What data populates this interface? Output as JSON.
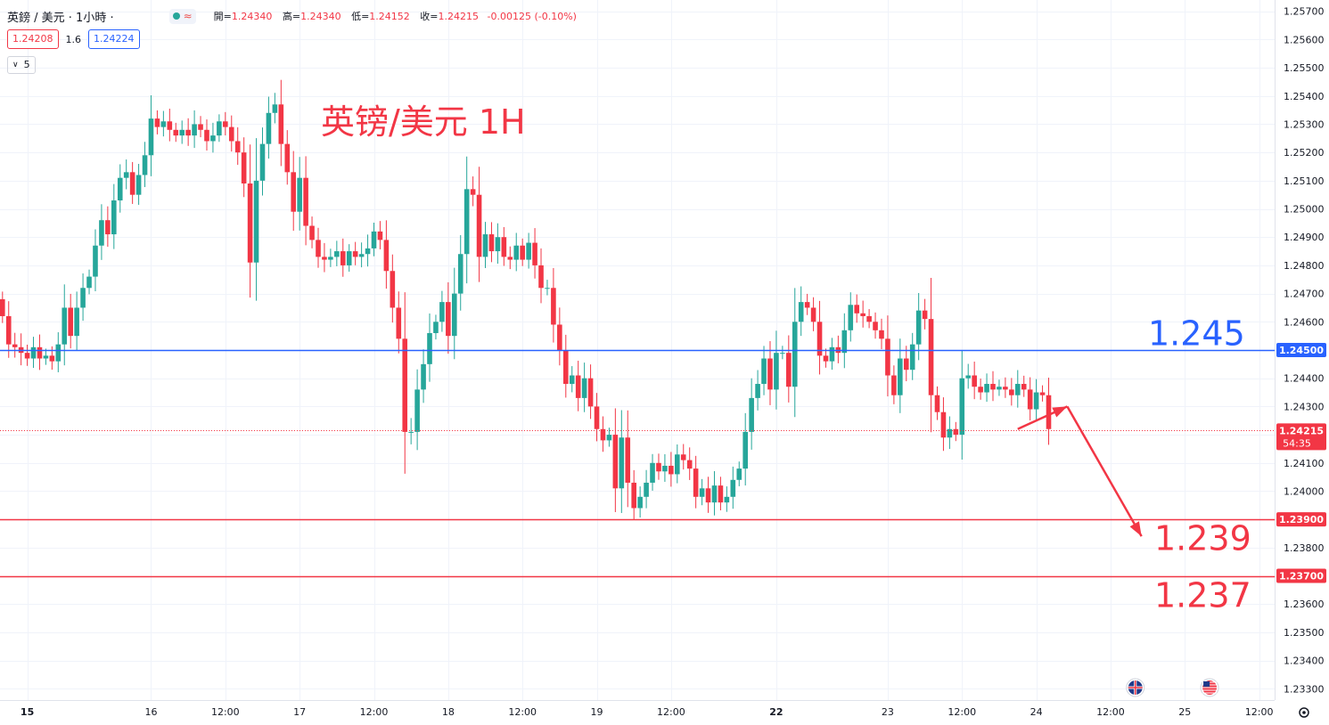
{
  "header": {
    "title": "英鎊 / 美元 · 1小時 ·",
    "ohlc": [
      {
        "label": "開=",
        "value": "1.24340"
      },
      {
        "label": "高=",
        "value": "1.24340"
      },
      {
        "label": "低=",
        "value": "1.24152"
      },
      {
        "label": "收=",
        "value": "1.24215"
      }
    ],
    "change": "-0.00125 (-0.10%)",
    "wave_symbol": "≈"
  },
  "prices": {
    "sell": "1.24208",
    "spread": "1.6",
    "buy": "1.24224"
  },
  "indicators_toggle": {
    "count": "5",
    "chevron": "∨"
  },
  "annotation_title": "英镑/美元 1H",
  "levels": [
    {
      "label": "1.245",
      "price": 1.245,
      "axis_tag": "1.24500",
      "color": "#2962ff"
    },
    {
      "label": "1.239",
      "price": 1.239,
      "axis_tag": "1.23900",
      "color": "#f23645"
    },
    {
      "label": "1.237",
      "price": 1.237,
      "axis_tag": "1.23700",
      "color": "#f23645"
    }
  ],
  "current_price": {
    "price": 1.24215,
    "tag": "1.24215",
    "countdown": "54:35"
  },
  "chart_data": {
    "type": "candlestick",
    "ylim": [
      1.2326,
      1.2574
    ],
    "y_ticks": [
      "1.25700",
      "1.25600",
      "1.25500",
      "1.25400",
      "1.25300",
      "1.25200",
      "1.25100",
      "1.25000",
      "1.24900",
      "1.24800",
      "1.24700",
      "1.24600",
      "1.24500",
      "1.24400",
      "1.24300",
      "1.24200",
      "1.24100",
      "1.24000",
      "1.23900",
      "1.23800",
      "1.23700",
      "1.23600",
      "1.23500",
      "1.23400",
      "1.23300"
    ],
    "x_ticks": [
      {
        "label": "15",
        "bold": true,
        "bar": 4
      },
      {
        "label": "16",
        "bold": false,
        "bar": 24
      },
      {
        "label": "12:00",
        "bold": false,
        "bar": 36
      },
      {
        "label": "17",
        "bold": false,
        "bar": 48
      },
      {
        "label": "12:00",
        "bold": false,
        "bar": 60
      },
      {
        "label": "18",
        "bold": false,
        "bar": 72
      },
      {
        "label": "12:00",
        "bold": false,
        "bar": 84
      },
      {
        "label": "19",
        "bold": false,
        "bar": 96
      },
      {
        "label": "12:00",
        "bold": false,
        "bar": 108
      },
      {
        "label": "22",
        "bold": true,
        "bar": 125
      },
      {
        "label": "23",
        "bold": false,
        "bar": 143
      },
      {
        "label": "12:00",
        "bold": false,
        "bar": 155
      },
      {
        "label": "24",
        "bold": false,
        "bar": 167
      },
      {
        "label": "12:00",
        "bold": false,
        "bar": 179
      },
      {
        "label": "25",
        "bold": false,
        "bar": 191
      },
      {
        "label": "12:00",
        "bold": false,
        "bar": 203
      }
    ],
    "closes": [
      1.2462,
      1.2452,
      1.2451,
      1.2449,
      1.2447,
      1.2451,
      1.2447,
      1.2448,
      1.2446,
      1.2452,
      1.2465,
      1.2455,
      1.2465,
      1.2472,
      1.2476,
      1.2487,
      1.2496,
      1.2491,
      1.2503,
      1.2511,
      1.2513,
      1.2505,
      1.2512,
      1.2519,
      1.2532,
      1.2529,
      1.2531,
      1.2528,
      1.2526,
      1.2528,
      1.2526,
      1.253,
      1.2528,
      1.2524,
      1.2526,
      1.2531,
      1.2529,
      1.2524,
      1.252,
      1.2509,
      1.2481,
      1.251,
      1.2523,
      1.2534,
      1.2537,
      1.2523,
      1.2513,
      1.2499,
      1.2511,
      1.2494,
      1.2489,
      1.2483,
      1.2482,
      1.2483,
      1.2485,
      1.248,
      1.2485,
      1.2483,
      1.2484,
      1.2486,
      1.2492,
      1.2489,
      1.2478,
      1.2465,
      1.2454,
      1.2421,
      1.2421,
      1.2436,
      1.2445,
      1.2456,
      1.246,
      1.2467,
      1.2455,
      1.247,
      1.2484,
      1.2507,
      1.2505,
      1.2483,
      1.2491,
      1.2485,
      1.249,
      1.2483,
      1.2482,
      1.2487,
      1.2482,
      1.2488,
      1.248,
      1.2472,
      1.2472,
      1.2459,
      1.245,
      1.2438,
      1.2441,
      1.2433,
      1.244,
      1.243,
      1.2422,
      1.2418,
      1.242,
      1.2401,
      1.2419,
      1.2403,
      1.2394,
      1.2398,
      1.2403,
      1.241,
      1.2407,
      1.2409,
      1.2406,
      1.2413,
      1.2411,
      1.2408,
      1.2398,
      1.2401,
      1.2396,
      1.2402,
      1.2396,
      1.2398,
      1.2404,
      1.2408,
      1.2421,
      1.2433,
      1.2438,
      1.2447,
      1.2436,
      1.2449,
      1.2449,
      1.2437,
      1.246,
      1.2467,
      1.2465,
      1.246,
      1.2448,
      1.2446,
      1.2451,
      1.2449,
      1.2457,
      1.2466,
      1.2463,
      1.2462,
      1.246,
      1.2457,
      1.2454,
      1.2441,
      1.2434,
      1.2447,
      1.2443,
      1.2452,
      1.2464,
      1.2461,
      1.2434,
      1.2428,
      1.2419,
      1.2422,
      1.242,
      1.244,
      1.2441,
      1.2437,
      1.2435,
      1.2438,
      1.2436,
      1.2437,
      1.2436,
      1.2434,
      1.2438,
      1.2436,
      1.2429,
      1.2435,
      1.2434,
      1.2422
    ]
  },
  "arrows": [
    {
      "from": {
        "bar": 164,
        "price": 1.2422
      },
      "to": {
        "bar": 172,
        "price": 1.243
      }
    },
    {
      "from": {
        "bar": 172,
        "price": 1.243
      },
      "to": {
        "bar": 184,
        "price": 1.2384
      }
    }
  ],
  "events": [
    {
      "name": "uk-flag-icon",
      "bar": 183
    },
    {
      "name": "us-flag-icon",
      "bar": 195
    }
  ],
  "colors": {
    "up": "#26a69a",
    "down": "#f23645",
    "blue": "#2962ff",
    "red": "#f23645",
    "grid": "#f0f3fa"
  },
  "settings_icon": "gear-icon"
}
